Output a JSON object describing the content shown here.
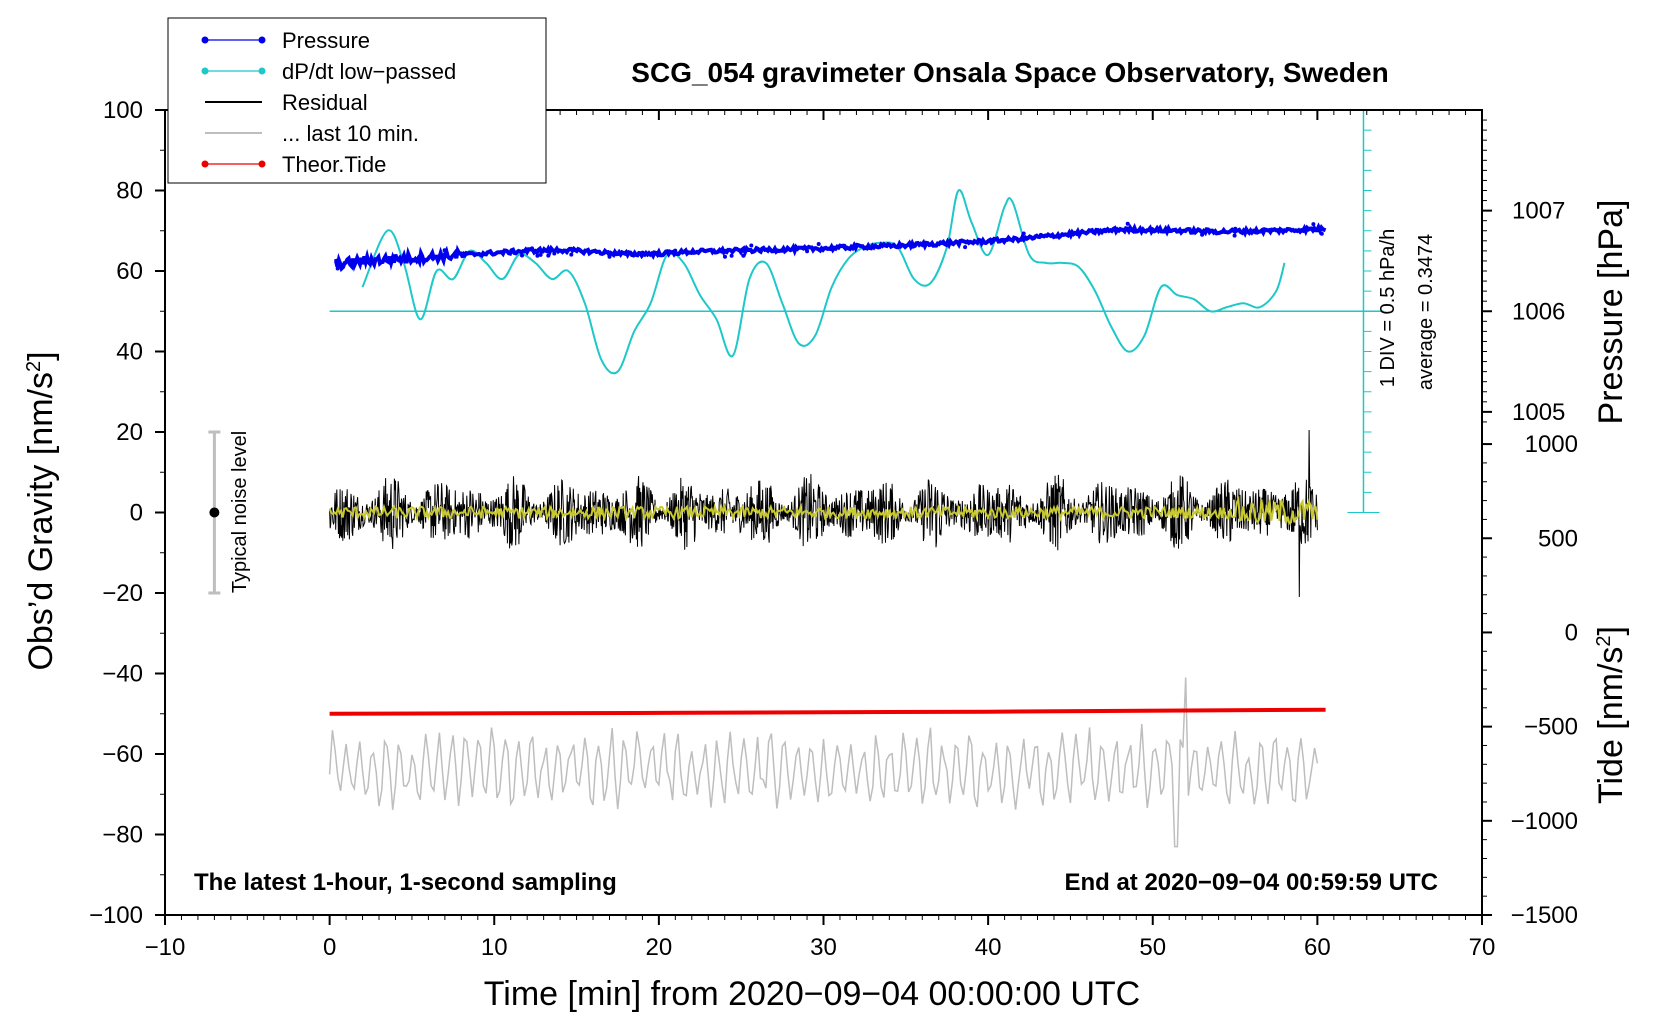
{
  "chart_data": {
    "type": "line",
    "title": "SCG_054 gravimeter Onsala Space Observatory, Sweden",
    "xlabel": "Time [min] from 2020−09−04 00:00:00 UTC",
    "ylabel_left_base": "Obs’d Gravity [nm/s",
    "ylabel_left_sup": "2",
    "ylabel_left_end": "]",
    "ylabel_right_top": "Pressure [hPa]",
    "ylabel_right_bottom_base": "Tide [nm/s",
    "ylabel_right_bottom_sup": "2",
    "ylabel_right_bottom_end": "]",
    "xlim": [
      -10,
      70
    ],
    "ylim": [
      -100,
      100
    ],
    "x_ticks": [
      -10,
      0,
      10,
      20,
      30,
      40,
      50,
      60,
      70
    ],
    "x_tick_labels": [
      "−10",
      "0",
      "10",
      "20",
      "30",
      "40",
      "50",
      "60",
      "70"
    ],
    "y_ticks": [
      -100,
      -80,
      -60,
      -40,
      -20,
      0,
      20,
      40,
      60,
      80,
      100
    ],
    "y_tick_labels": [
      "−100",
      "−80",
      "−60",
      "−40",
      "−20",
      "0",
      "20",
      "40",
      "60",
      "80",
      "100"
    ],
    "pressure_axis": {
      "ticks": [
        1005,
        1006,
        1007
      ],
      "tick_labels": [
        "1005",
        "1006",
        "1007"
      ],
      "gravity_at_1005": 25,
      "gravity_at_1006": 50,
      "gravity_at_1007": 75
    },
    "tide_axis": {
      "ticks": [
        -1500,
        -1000,
        -500,
        0,
        500,
        1000
      ],
      "tick_labels": [
        "−1500",
        "−1000",
        "−500",
        "0",
        "500",
        "1000"
      ],
      "gravity_at_minus1500": -100,
      "gravity_at_1000": 17
    },
    "dpdt_scale": {
      "text_div": "1 DIV = 0.5 hPa/h",
      "text_avg": "average = 0.3474",
      "baseline": 50,
      "x": 62.8,
      "bottom": 0,
      "top": 100,
      "tick_step": 5
    },
    "noise_bar": {
      "label": "Typical noise level",
      "x": -7,
      "low": -20,
      "high": 20
    },
    "notes": {
      "left": "The latest 1-hour, 1-second sampling",
      "right": "End at 2020−09−04 00:59:59 UTC"
    },
    "legend": [
      {
        "label": "Pressure",
        "color": "#0000ee",
        "style": "line-dot"
      },
      {
        "label": "dP/dt low−passed",
        "color": "#1ec8c8",
        "style": "line-dot"
      },
      {
        "label": "Residual",
        "color": "#000000",
        "style": "line"
      },
      {
        "label": "... last 10 min.",
        "color": "#bebebe",
        "style": "line"
      },
      {
        "label": "Theor.Tide",
        "color": "#ee0000",
        "style": "line-dot"
      }
    ],
    "series": [
      {
        "name": "Pressure",
        "color": "#0000ee",
        "x": [
          0.3,
          2,
          4,
          6,
          8,
          10,
          12,
          14,
          16,
          18,
          20,
          22,
          24,
          26,
          28,
          30,
          32,
          34,
          36,
          38,
          40,
          42,
          44,
          46,
          48,
          50,
          52,
          54,
          56,
          58,
          60.5
        ],
        "y": [
          61.5,
          62.5,
          63,
          63.5,
          64,
          64.5,
          65,
          65.2,
          64.8,
          64.2,
          64.3,
          64.8,
          65,
          65.2,
          65.4,
          65.6,
          66,
          66.2,
          66.6,
          67,
          67.4,
          68,
          68.8,
          69.6,
          70.3,
          70.2,
          70,
          69.8,
          69.9,
          70.1,
          70.5
        ]
      },
      {
        "name": "dP/dt low−passed",
        "color": "#1ec8c8",
        "x": [
          2,
          3.5,
          4.5,
          5.5,
          6.5,
          7.5,
          8.5,
          9.5,
          10.5,
          11.5,
          12.5,
          13.5,
          14.5,
          15.5,
          16.5,
          17.5,
          18.5,
          19.5,
          20.5,
          21.5,
          22.5,
          23.5,
          24.5,
          25.5,
          26.5,
          27.5,
          28.5,
          29.5,
          30.5,
          31.5,
          32.5,
          33.5,
          34.5,
          35.5,
          36.5,
          37.5,
          38.2,
          39,
          40,
          41,
          41.5,
          42.5,
          43.5,
          44.5,
          45.5,
          46.5,
          47.5,
          48.5,
          49.5,
          50.5,
          51.5,
          52.5,
          53.5,
          54.5,
          55.5,
          56.5,
          57.5,
          58
        ],
        "y": [
          56,
          70,
          62,
          48,
          60,
          58,
          65,
          62,
          58,
          64,
          62,
          58,
          60,
          52,
          38,
          35,
          45,
          52,
          64,
          62,
          54,
          48,
          39,
          58,
          62,
          52,
          42,
          44,
          56,
          63,
          66,
          67,
          66,
          58,
          57,
          66,
          80,
          72,
          64,
          76,
          77,
          64,
          62,
          62,
          61,
          55,
          46,
          40,
          44,
          56,
          54,
          53,
          50,
          51,
          52,
          51,
          55,
          62
        ]
      },
      {
        "name": "Residual",
        "color": "#000000",
        "x_range": [
          0,
          60
        ],
        "center": 0,
        "amplitude": 10,
        "peak_max": 20.5,
        "peak_min": -21
      },
      {
        "name": "... last 10 min.",
        "color": "#bebebe",
        "x_range": [
          0,
          60
        ],
        "center": -64,
        "amplitude": 9,
        "peak_max": -41,
        "peak_min": -83
      },
      {
        "name": "Theor.Tide",
        "color": "#ee0000",
        "x": [
          0,
          20,
          40,
          60.5
        ],
        "y": [
          -50,
          -49.8,
          -49.5,
          -49
        ]
      },
      {
        "name": "Residual low-passed",
        "color": "#c8c832",
        "x_range": [
          0,
          60
        ],
        "center": 0,
        "amplitude": 1.5
      }
    ]
  }
}
